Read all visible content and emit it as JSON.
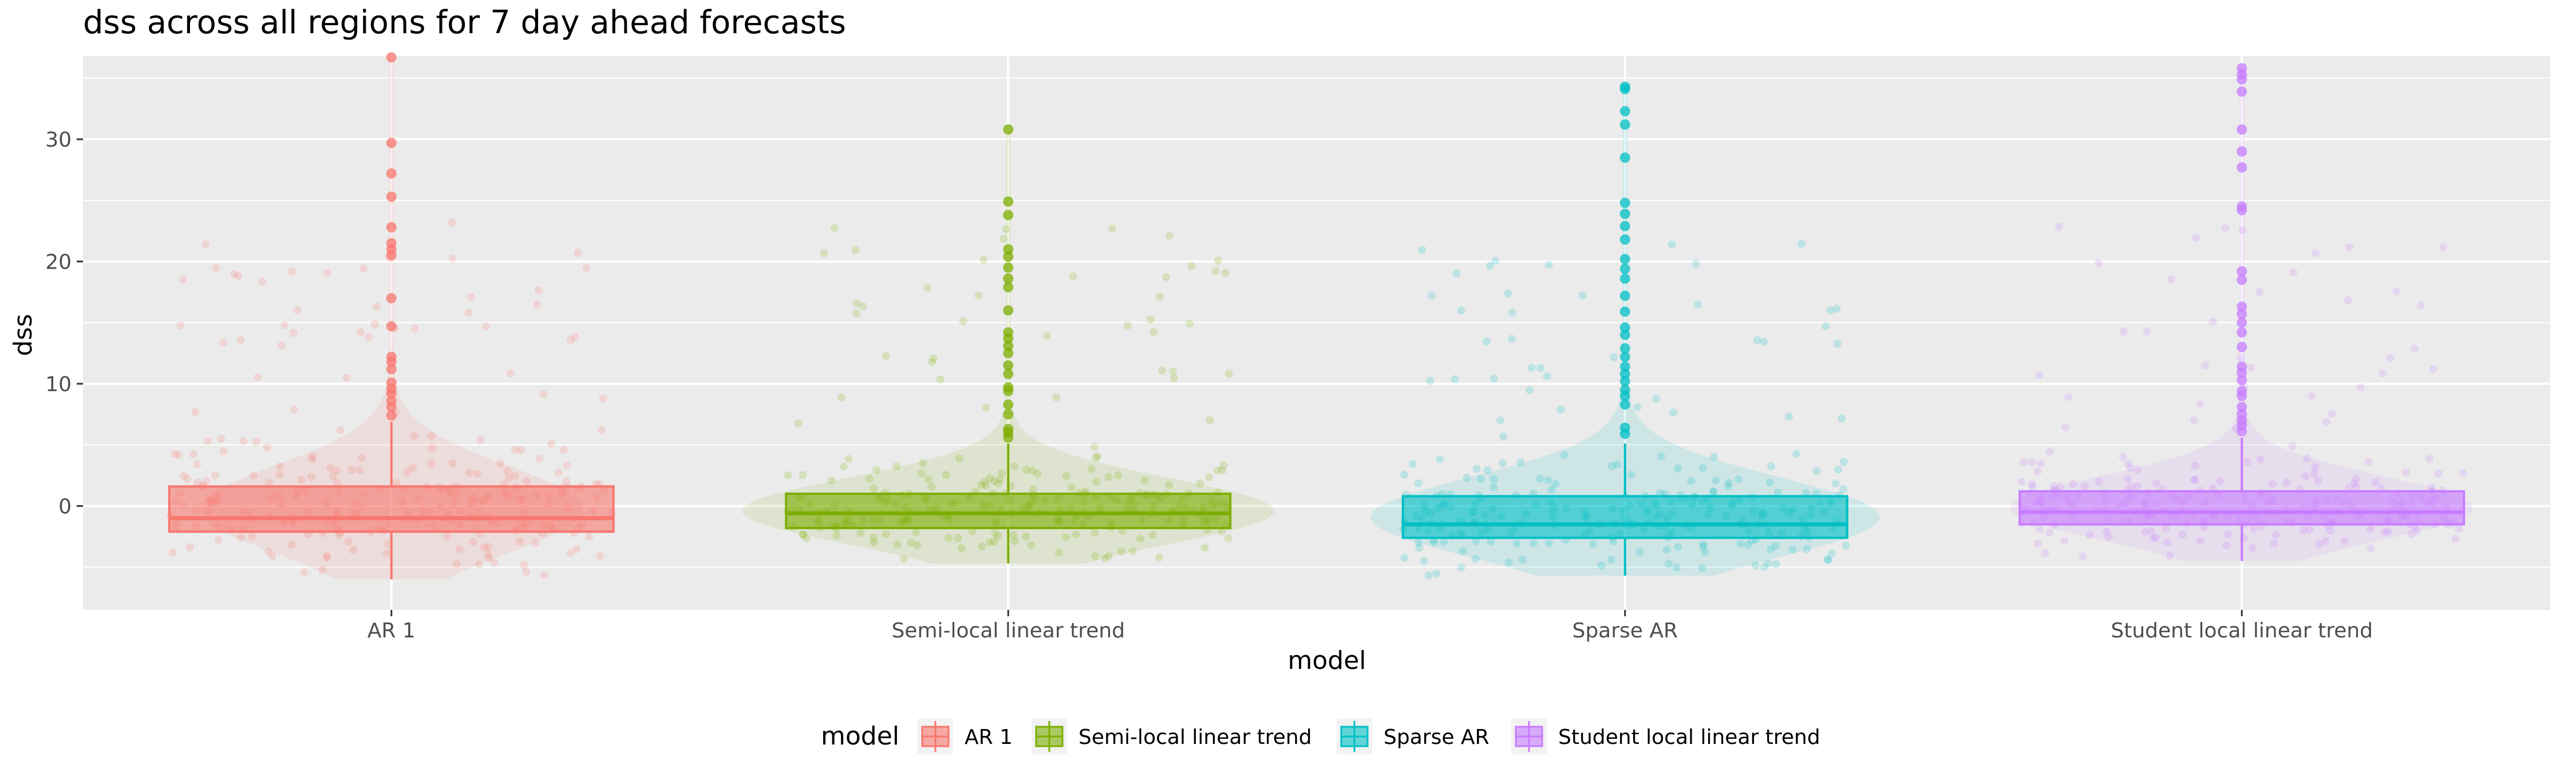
{
  "chart_data": {
    "type": "box",
    "title": "dss across all regions for 7 day ahead forecasts",
    "xlabel": "model",
    "ylabel": "dss",
    "categories": [
      "AR 1",
      "Semi-local linear trend",
      "Sparse AR",
      "Student local linear trend"
    ],
    "y_ticks": [
      0,
      10,
      20,
      30
    ],
    "ylim": [
      -8.5,
      36.8
    ],
    "grid": true,
    "legend": {
      "title": "model",
      "position": "bottom"
    },
    "series": [
      {
        "name": "AR 1",
        "color": "#F8766D",
        "box": {
          "lower_whisker": -6,
          "q1": -2.1,
          "median": -1.0,
          "q3": 1.6,
          "upper_whisker": 6.9
        },
        "outliers": [
          7.4,
          8.1,
          8.6,
          9.2,
          9.6,
          10.1,
          11.2,
          11.8,
          12.2,
          14.7,
          17.0,
          20.5,
          21.0,
          21.5,
          22.8,
          25.3,
          27.2,
          29.7,
          36.7
        ]
      },
      {
        "name": "Semi-local linear trend",
        "color": "#7CAE00",
        "box": {
          "lower_whisker": -4.7,
          "q1": -1.8,
          "median": -0.6,
          "q3": 1.0,
          "upper_whisker": 5.1
        },
        "outliers": [
          5.6,
          6.0,
          6.3,
          7.5,
          8.3,
          9.4,
          9.7,
          10.8,
          11.5,
          12.5,
          13.1,
          13.7,
          14.2,
          16.0,
          17.9,
          18.6,
          19.5,
          20.4,
          21.0,
          23.8,
          24.9,
          30.8
        ]
      },
      {
        "name": "Sparse AR",
        "color": "#00BFC4",
        "box": {
          "lower_whisker": -5.7,
          "q1": -2.6,
          "median": -1.5,
          "q3": 0.8,
          "upper_whisker": 5.1
        },
        "outliers": [
          5.9,
          6.4,
          8.3,
          9.0,
          9.5,
          10.2,
          10.8,
          11.4,
          12.2,
          12.9,
          14.0,
          14.6,
          15.9,
          17.2,
          18.6,
          19.4,
          20.2,
          21.8,
          22.9,
          23.9,
          24.8,
          28.5,
          31.2,
          32.3,
          34.1,
          34.3
        ]
      },
      {
        "name": "Student local linear trend",
        "color": "#C77CFF",
        "box": {
          "lower_whisker": -4.5,
          "q1": -1.5,
          "median": -0.5,
          "q3": 1.2,
          "upper_whisker": 5.6
        },
        "outliers": [
          6.1,
          6.6,
          7.0,
          7.5,
          8.1,
          9.0,
          9.4,
          10.3,
          10.9,
          11.4,
          13.0,
          14.2,
          15.0,
          15.7,
          16.3,
          18.5,
          19.2,
          24.2,
          24.5,
          27.7,
          29.0,
          30.8,
          33.9,
          34.9,
          35.3,
          35.8
        ]
      }
    ]
  }
}
